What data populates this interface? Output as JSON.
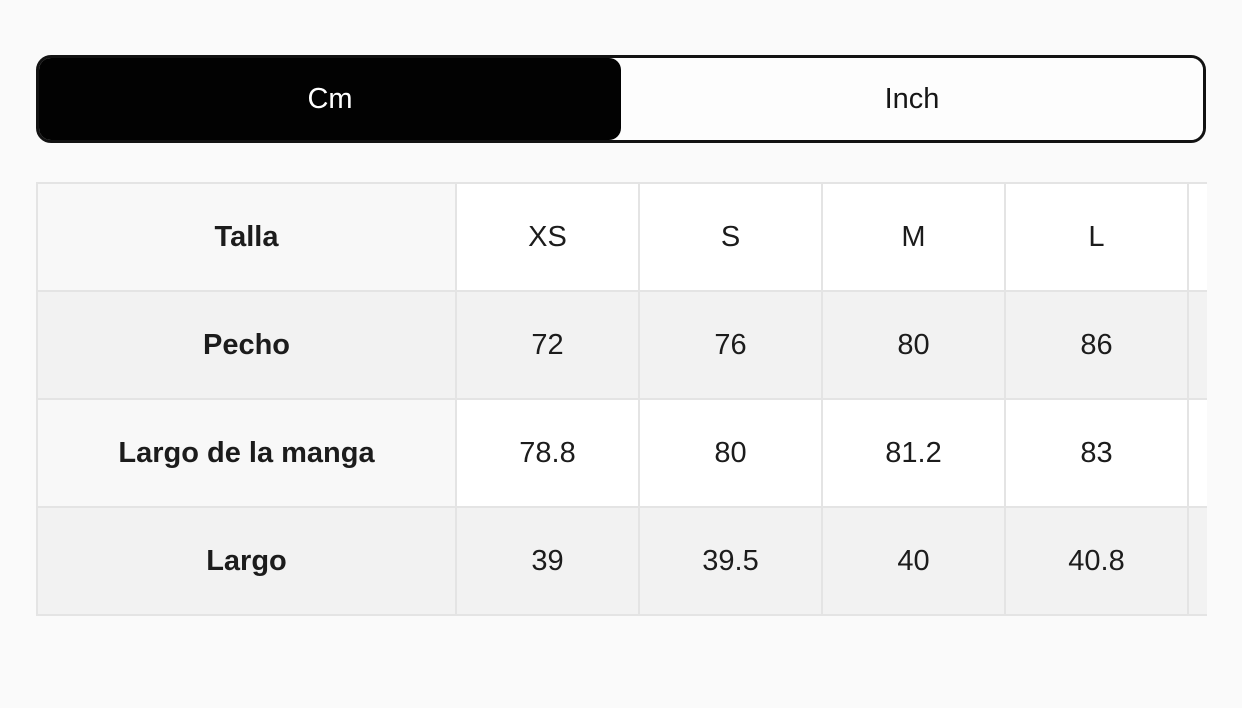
{
  "page": {
    "background_color": "#fafafa"
  },
  "unit_toggle": {
    "options": [
      {
        "label": "Cm",
        "selected": true
      },
      {
        "label": "Inch",
        "selected": false
      }
    ],
    "selected_bg_color": "#020202",
    "selected_text_color": "#ffffff",
    "unselected_bg_color": "#fdfdfd",
    "unselected_text_color": "#161616"
  },
  "size_table": {
    "columns": [
      "Talla",
      "XS",
      "S",
      "M",
      "L"
    ],
    "rows": [
      {
        "label": "Pecho",
        "values": [
          "72",
          "76",
          "80",
          "86"
        ]
      },
      {
        "label": "Largo de la manga",
        "values": [
          "78.8",
          "80",
          "81.2",
          "83"
        ]
      },
      {
        "label": "Largo",
        "values": [
          "39",
          "39.5",
          "40",
          "40.8"
        ]
      }
    ],
    "clipped_next_column_visible": true,
    "border_color": "#e4e4e4",
    "grey_row_color": "#f2f2f2"
  }
}
